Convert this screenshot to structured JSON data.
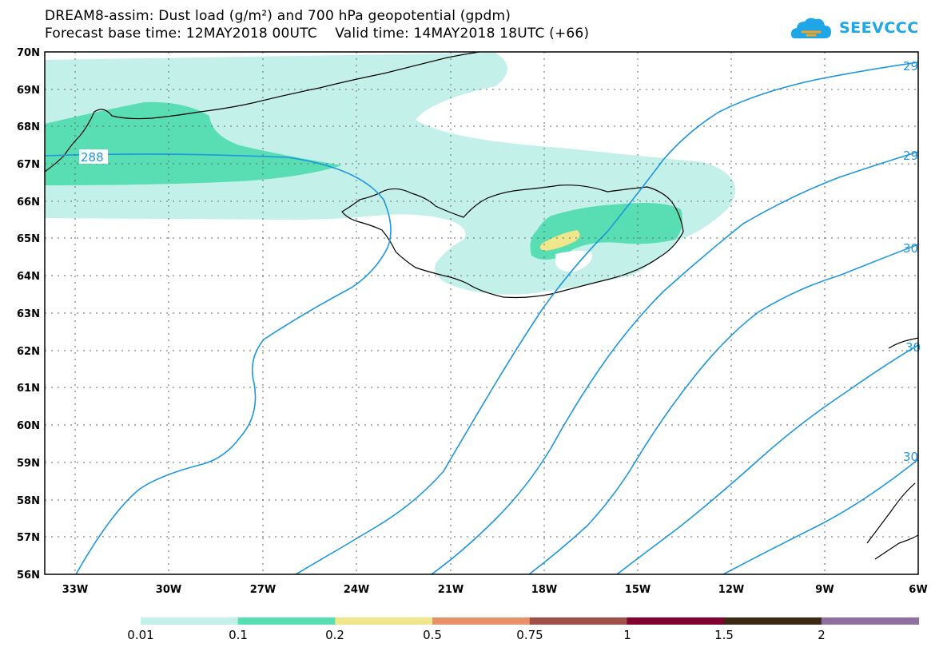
{
  "title": {
    "line1": "DREAM8-assim: Dust load (g/m²) and 700 hPa geopotential (gpdm)",
    "line2": "Forecast base time: 12MAY2018 00UTC    Valid time: 14MAY2018 18UTC (+66)"
  },
  "logo": {
    "text": "SEEVCCC"
  },
  "axes": {
    "lat_labels": [
      "70N",
      "69N",
      "68N",
      "67N",
      "66N",
      "65N",
      "64N",
      "63N",
      "62N",
      "61N",
      "60N",
      "59N",
      "58N",
      "57N",
      "56N"
    ],
    "lon_labels": [
      "33W",
      "30W",
      "27W",
      "24W",
      "21W",
      "18W",
      "15W",
      "12W",
      "9W",
      "6W"
    ]
  },
  "contours": {
    "labels": [
      "288",
      "29",
      "29",
      "30",
      "30",
      "30"
    ]
  },
  "colorbar": {
    "labels": [
      "0.01",
      "0.1",
      "0.2",
      "0.5",
      "0.75",
      "1",
      "1.5",
      "2"
    ],
    "colors": [
      "#c4f0ea",
      "#58deb2",
      "#f0e68c",
      "#e8906a",
      "#a0504a",
      "#800030",
      "#3c2814",
      "#9070a0"
    ]
  },
  "colors": {
    "contour": "#1e96e0",
    "dust_light": "#c4f0ea",
    "dust_mid": "#58deb2",
    "dust_high": "#f0e68c"
  }
}
